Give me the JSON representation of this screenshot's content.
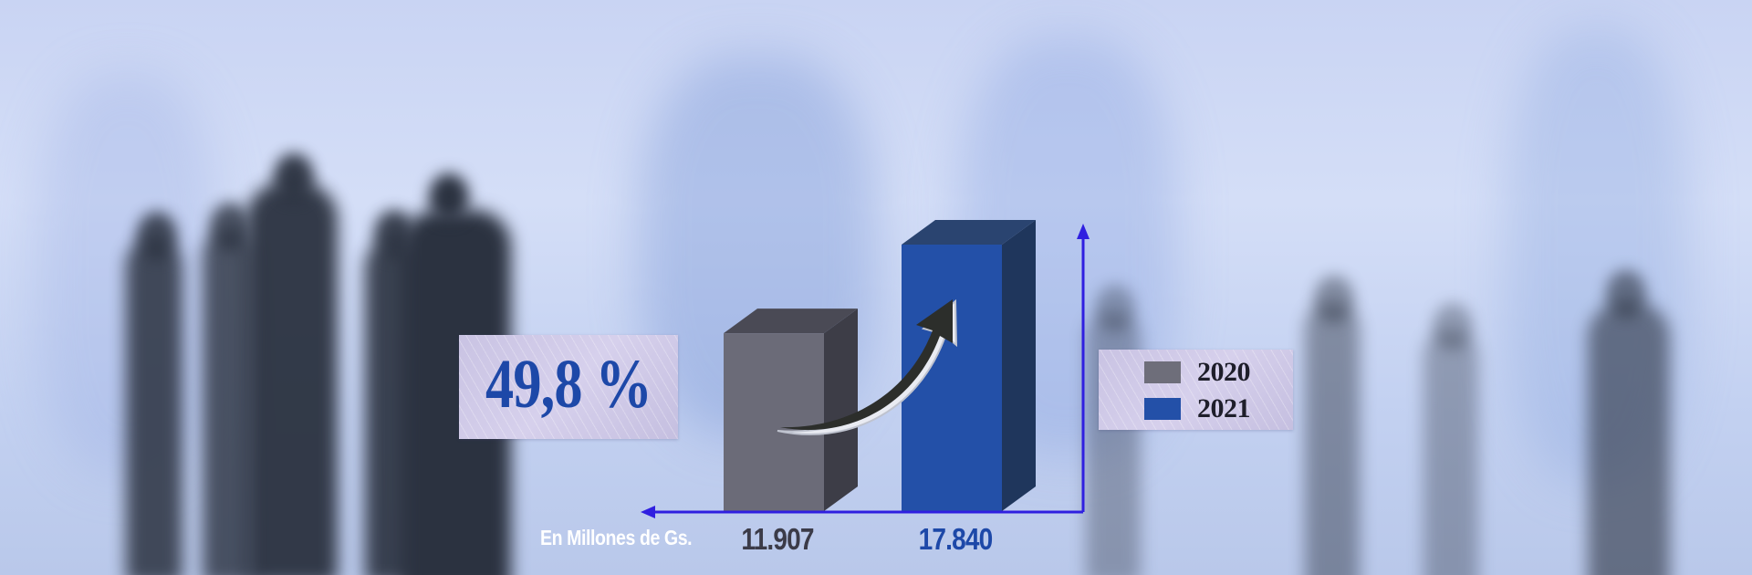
{
  "growth_badge": {
    "text": "49,8 %"
  },
  "unit_label": "En Millones de Gs.",
  "legend": [
    {
      "label": "2020",
      "color": "#6e6e7a"
    },
    {
      "label": "2021",
      "color": "#2350a8"
    }
  ],
  "colors": {
    "axis": "#2f1fe0",
    "bar_2020": "#6b6b78",
    "bar_2021": "#2350a8",
    "value_2020": "#3b3b48",
    "value_2021": "#1d48a8"
  },
  "chart_data": {
    "type": "bar",
    "categories": [
      "2020",
      "2021"
    ],
    "values": [
      11907,
      17840
    ],
    "value_labels": [
      "11.907",
      "17.840"
    ],
    "ylabel": "En Millones de Gs.",
    "annotation": "49,8 %",
    "ylim": [
      0,
      20000
    ],
    "grid": false,
    "legend_position": "right"
  }
}
